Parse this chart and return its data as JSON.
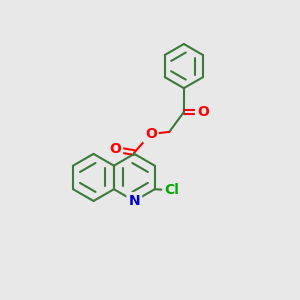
{
  "background_color": "#e8e8e8",
  "bond_color": "#3a7a3a",
  "O_color": "#ff0000",
  "N_color": "#0000cc",
  "Cl_color": "#00aa00",
  "lw": 1.5,
  "fs": 9,
  "xlim": [
    0,
    10
  ],
  "ylim": [
    0,
    10
  ],
  "figsize": [
    3.0,
    3.0
  ],
  "dpi": 100
}
